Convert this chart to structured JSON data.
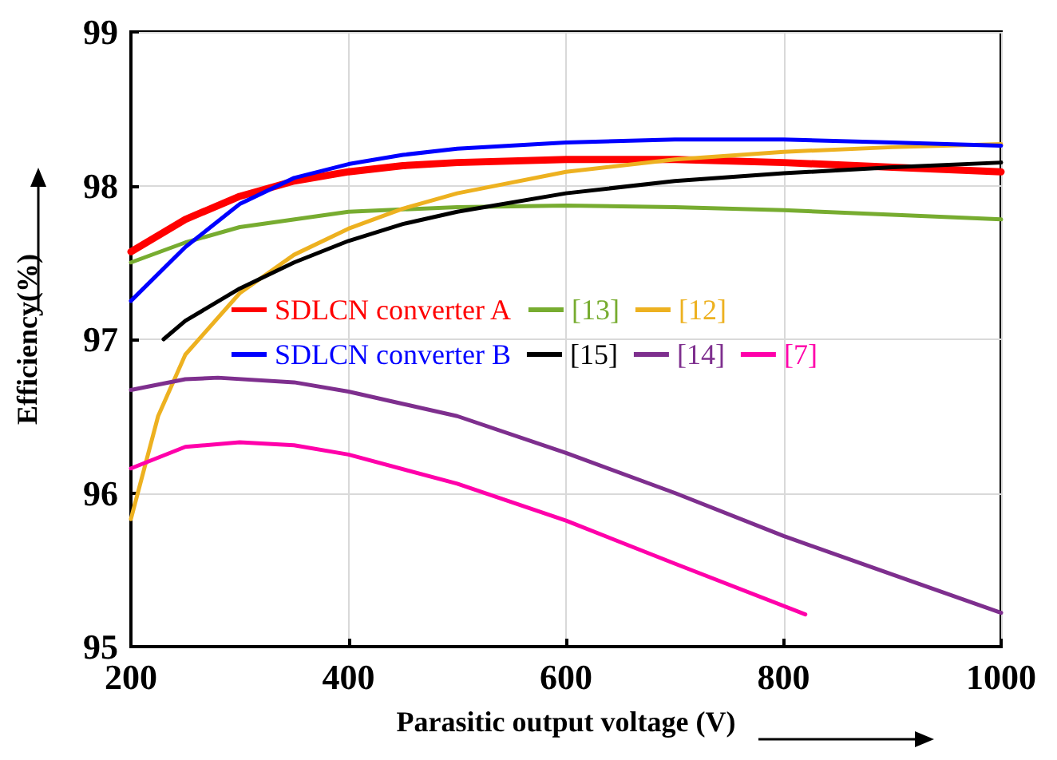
{
  "chart_data": {
    "type": "line",
    "xlabel": "Parasitic output voltage (V)",
    "ylabel": "Efficiency(%)",
    "xlim": [
      200,
      1000
    ],
    "xticks": [
      200,
      400,
      600,
      800,
      1000
    ],
    "ylim": [
      95,
      99
    ],
    "yticks": [
      95,
      96,
      97,
      98,
      99
    ],
    "grid": true,
    "legend": "center",
    "marker": "none",
    "line_style": "solid",
    "series": [
      {
        "name": "SDLCN converter A",
        "color": "#ff0000",
        "x": [
          200,
          250,
          300,
          350,
          400,
          450,
          500,
          600,
          700,
          800,
          900,
          1000
        ],
        "values": [
          97.57,
          97.78,
          97.93,
          98.03,
          98.09,
          98.13,
          98.15,
          98.17,
          98.17,
          98.15,
          98.12,
          98.09
        ]
      },
      {
        "name": "[13]",
        "color": "#77ac30",
        "x": [
          200,
          250,
          300,
          400,
          500,
          600,
          700,
          800,
          900,
          1000
        ],
        "values": [
          97.5,
          97.63,
          97.73,
          97.83,
          97.86,
          97.87,
          97.86,
          97.84,
          97.81,
          97.78
        ]
      },
      {
        "name": "[12]",
        "color": "#edb120",
        "x": [
          200,
          225,
          250,
          300,
          350,
          400,
          450,
          500,
          600,
          700,
          800,
          900,
          1000
        ],
        "values": [
          95.83,
          96.5,
          96.9,
          97.3,
          97.55,
          97.72,
          97.85,
          97.95,
          98.09,
          98.17,
          98.22,
          98.25,
          98.27
        ]
      },
      {
        "name": "SDLCN converter B",
        "color": "#0000ff",
        "x": [
          200,
          250,
          300,
          350,
          400,
          450,
          500,
          600,
          700,
          800,
          900,
          1000
        ],
        "values": [
          97.25,
          97.6,
          97.88,
          98.05,
          98.14,
          98.2,
          98.24,
          98.28,
          98.3,
          98.3,
          98.28,
          98.26
        ]
      },
      {
        "name": "[15]",
        "color": "#000000",
        "x": [
          230,
          250,
          300,
          350,
          400,
          450,
          500,
          600,
          700,
          800,
          900,
          1000
        ],
        "values": [
          97.0,
          97.12,
          97.33,
          97.5,
          97.64,
          97.75,
          97.83,
          97.95,
          98.03,
          98.08,
          98.12,
          98.15
        ]
      },
      {
        "name": "[14]",
        "color": "#7e2f8e",
        "x": [
          200,
          250,
          280,
          350,
          400,
          500,
          600,
          700,
          800,
          900,
          1000
        ],
        "values": [
          96.67,
          96.74,
          96.75,
          96.72,
          96.66,
          96.5,
          96.26,
          96.0,
          95.72,
          95.47,
          95.22
        ]
      },
      {
        "name": "[7]",
        "color": "#ff00aa",
        "x": [
          200,
          250,
          300,
          350,
          400,
          500,
          600,
          700,
          820
        ],
        "values": [
          96.16,
          96.3,
          96.33,
          96.31,
          96.25,
          96.06,
          95.82,
          95.54,
          95.21
        ]
      }
    ]
  }
}
